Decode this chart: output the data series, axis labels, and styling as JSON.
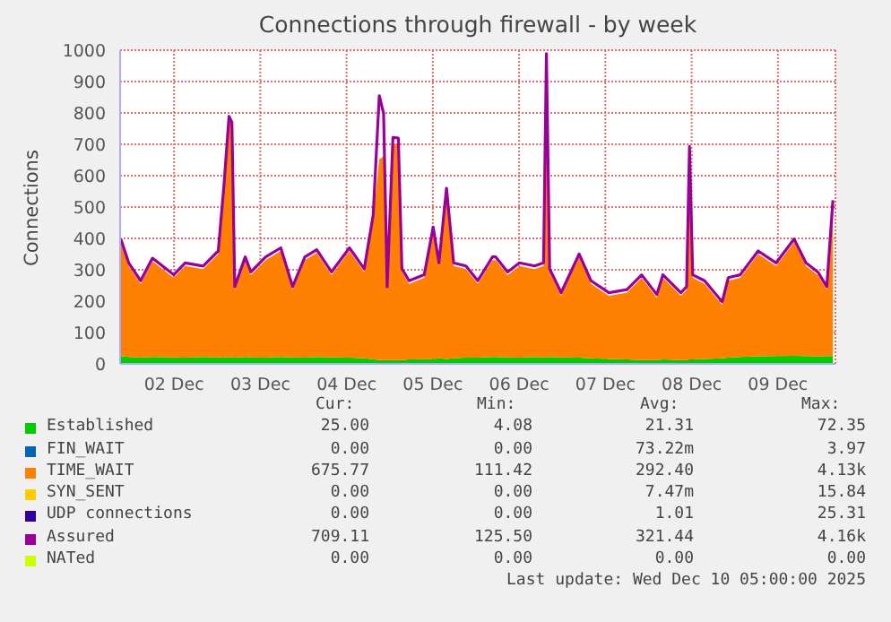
{
  "chart_data": {
    "type": "area",
    "title": "Connections through firewall - by week",
    "ylabel": "Connections",
    "stacked": true,
    "grid": true,
    "legend": "bottom",
    "x": [
      "2025-12-01T09:12",
      "2025-12-01T11:24",
      "2025-12-01T14:42",
      "2025-12-01T18:00",
      "2025-12-01T23:54",
      "2025-12-02T03:06",
      "2025-12-02T08:06",
      "2025-12-02T12:18",
      "2025-12-02T13:54",
      "2025-12-02T15:18",
      "2025-12-02T16:06",
      "2025-12-02T16:54",
      "2025-12-02T19:48",
      "2025-12-02T21:24",
      "2025-12-03T01:30",
      "2025-12-03T05:42",
      "2025-12-03T09:00",
      "2025-12-03T12:24",
      "2025-12-03T15:42",
      "2025-12-03T19:48",
      "2025-12-04T00:48",
      "2025-12-04T04:54",
      "2025-12-04T07:24",
      "2025-12-04T09:06",
      "2025-12-04T10:18",
      "2025-12-04T11:18",
      "2025-12-04T12:54",
      "2025-12-04T14:24",
      "2025-12-04T15:24",
      "2025-12-04T17:24",
      "2025-12-04T21:36",
      "2025-12-05T00:06",
      "2025-12-05T01:42",
      "2025-12-05T03:48",
      "2025-12-05T05:48",
      "2025-12-05T09:12",
      "2025-12-05T12:30",
      "2025-12-05T16:36",
      "2025-12-05T17:30",
      "2025-12-05T20:48",
      "2025-12-06T00:06",
      "2025-12-06T04:18",
      "2025-12-06T06:48",
      "2025-12-06T07:36",
      "2025-12-06T08:30",
      "2025-12-06T11:42",
      "2025-12-06T16:42",
      "2025-12-06T20:00",
      "2025-12-07T01:00",
      "2025-12-07T06:00",
      "2025-12-07T10:06",
      "2025-12-07T14:18",
      "2025-12-07T16:00",
      "2025-12-07T21:00",
      "2025-12-07T22:36",
      "2025-12-07T23:24",
      "2025-12-08T00:18",
      "2025-12-08T03:36",
      "2025-12-08T08:30",
      "2025-12-08T10:12",
      "2025-12-08T13:30",
      "2025-12-08T18:30",
      "2025-12-08T23:30",
      "2025-12-09T04:30",
      "2025-12-09T07:48",
      "2025-12-09T11:06",
      "2025-12-09T13:36",
      "2025-12-09T15:18"
    ],
    "xlim": [
      "2025-12-01T09:00",
      "2025-12-09T16:00"
    ],
    "xticks": [
      {
        "value": "2025-12-02",
        "label": "02 Dec"
      },
      {
        "value": "2025-12-03",
        "label": "03 Dec"
      },
      {
        "value": "2025-12-04",
        "label": "04 Dec"
      },
      {
        "value": "2025-12-05",
        "label": "05 Dec"
      },
      {
        "value": "2025-12-06",
        "label": "06 Dec"
      },
      {
        "value": "2025-12-07",
        "label": "07 Dec"
      },
      {
        "value": "2025-12-08",
        "label": "08 Dec"
      },
      {
        "value": "2025-12-09",
        "label": "09 Dec"
      }
    ],
    "ylim": [
      0,
      1000
    ],
    "yticks": [
      0,
      100,
      200,
      300,
      400,
      500,
      600,
      700,
      800,
      900,
      1000
    ],
    "series": [
      {
        "name": "Established",
        "color": "#00cc00",
        "values": [
          25,
          22,
          20,
          22,
          21,
          20,
          22,
          21,
          20,
          22,
          21,
          20,
          22,
          21,
          20,
          22,
          21,
          20,
          22,
          21,
          20,
          18,
          15,
          12,
          12,
          12,
          12,
          12,
          12,
          14,
          15,
          16,
          18,
          16,
          18,
          20,
          20,
          22,
          22,
          21,
          20,
          22,
          21,
          20,
          22,
          21,
          20,
          18,
          16,
          14,
          12,
          12,
          14,
          12,
          12,
          14,
          14,
          16,
          18,
          20,
          22,
          24,
          25,
          26,
          25,
          24,
          25,
          25
        ]
      },
      {
        "name": "FIN_WAIT",
        "color": "#0066b3",
        "values": [
          null,
          null,
          null,
          null,
          null,
          null,
          null,
          null,
          null,
          null,
          null,
          null,
          null,
          null,
          null,
          null,
          null,
          null,
          null,
          null,
          null,
          null,
          null,
          null,
          null,
          null,
          null,
          null,
          null,
          null,
          null,
          null,
          null,
          null,
          null,
          null,
          null,
          null,
          null,
          null,
          null,
          null,
          null,
          null,
          null,
          null,
          null,
          null,
          null,
          null,
          null,
          null,
          null,
          null,
          null,
          null,
          null,
          null,
          null,
          null,
          null,
          null,
          null,
          null,
          null,
          null,
          null,
          null
        ]
      },
      {
        "name": "TIME_WAIT",
        "color": "#ff8000",
        "values": [
          363,
          290,
          235,
          305,
          253,
          292,
          280,
          329,
          540,
          757,
          739,
          216,
          309,
          262,
          311,
          338,
          215,
          311,
          332,
          262,
          340,
          275,
          449,
          640,
          650,
          224,
          690,
          690,
          281,
          241,
          259,
          410,
          294,
          534,
          294,
          282,
          235,
          309,
          309,
          262,
          292,
          280,
          291,
          959,
          271,
          196,
          320,
          237,
          201,
          213,
          262,
          199,
          260,
          205,
          224,
          669,
          260,
          239,
          170,
          245,
          252,
          326,
          287,
          362,
          287,
          259,
          211,
          487
        ]
      },
      {
        "name": "SYN_SENT",
        "color": "#ffcc00",
        "values": [
          null,
          null,
          null,
          null,
          null,
          null,
          null,
          null,
          null,
          null,
          null,
          null,
          null,
          null,
          null,
          null,
          null,
          null,
          null,
          null,
          null,
          null,
          null,
          null,
          null,
          null,
          null,
          null,
          null,
          null,
          null,
          null,
          null,
          null,
          null,
          null,
          null,
          null,
          null,
          null,
          null,
          null,
          null,
          null,
          null,
          null,
          null,
          null,
          null,
          null,
          null,
          null,
          null,
          null,
          null,
          null,
          null,
          null,
          null,
          null,
          null,
          null,
          null,
          null,
          null,
          null,
          null,
          null
        ]
      },
      {
        "name": "UDP connections",
        "color": "#330099",
        "values": [
          null,
          null,
          null,
          null,
          null,
          null,
          null,
          null,
          null,
          null,
          null,
          null,
          null,
          null,
          null,
          null,
          null,
          null,
          null,
          null,
          null,
          null,
          null,
          null,
          null,
          null,
          null,
          null,
          null,
          null,
          null,
          null,
          null,
          null,
          null,
          null,
          null,
          null,
          null,
          null,
          null,
          null,
          null,
          null,
          null,
          null,
          null,
          null,
          null,
          null,
          null,
          null,
          null,
          null,
          null,
          null,
          null,
          null,
          null,
          null,
          null,
          null,
          null,
          null,
          null,
          null,
          null,
          null
        ]
      },
      {
        "name": "Assured",
        "color": "#990099",
        "type": "line",
        "values": [
          398,
          322,
          265,
          337,
          284,
          322,
          312,
          360,
          570,
          789,
          770,
          246,
          341,
          293,
          341,
          370,
          246,
          341,
          364,
          293,
          370,
          303,
          474,
          855,
          798,
          246,
          722,
          720,
          303,
          265,
          284,
          436,
          322,
          560,
          322,
          312,
          265,
          341,
          341,
          293,
          322,
          312,
          322,
          989,
          303,
          227,
          350,
          265,
          227,
          237,
          284,
          221,
          284,
          227,
          246,
          693,
          284,
          265,
          198,
          275,
          284,
          360,
          322,
          398,
          322,
          293,
          246,
          522
        ]
      },
      {
        "name": "NATed",
        "color": "#ccff00",
        "type": "line",
        "values": [
          null,
          null,
          null,
          null,
          null,
          null,
          null,
          null,
          null,
          null,
          null,
          null,
          null,
          null,
          null,
          null,
          null,
          null,
          null,
          null,
          null,
          null,
          null,
          null,
          null,
          null,
          null,
          null,
          null,
          null,
          null,
          null,
          null,
          null,
          null,
          null,
          null,
          null,
          null,
          null,
          null,
          null,
          null,
          null,
          null,
          null,
          null,
          null,
          null,
          null,
          null,
          null,
          null,
          null,
          null,
          null,
          null,
          null,
          null,
          null,
          null,
          null,
          null,
          null,
          null,
          null,
          null,
          null
        ]
      }
    ],
    "annotations": [
      "Cur:",
      "Min:",
      "Avg:",
      "Max:",
      "25.00",
      "4.08",
      "21.31",
      "72.35",
      "0.00",
      "0.00",
      "73.22m",
      "3.97",
      "675.77",
      "111.42",
      "292.40",
      "4.13k",
      "0.00",
      "0.00",
      "7.47m",
      "15.84",
      "0.00",
      "0.00",
      "1.01",
      "25.31",
      "709.11",
      "125.50",
      "321.44",
      "4.16k",
      "0.00",
      "0.00",
      "0.00",
      "0.00",
      "Last update: Wed Dec 10 05:00:00 2025"
    ]
  }
}
